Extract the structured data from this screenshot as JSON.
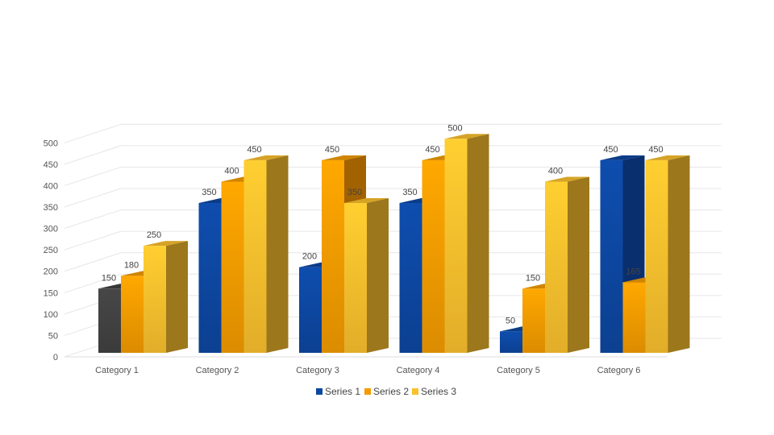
{
  "chart_data": {
    "type": "bar",
    "style": "3d-clustered-column",
    "categories": [
      "Category 1",
      "Category 2",
      "Category 3",
      "Category 4",
      "Category 5",
      "Category 6"
    ],
    "series": [
      {
        "name": "Series 1",
        "values": [
          150,
          350,
          200,
          350,
          50,
          450
        ],
        "color": "#0d47a1"
      },
      {
        "name": "Series 2",
        "values": [
          180,
          400,
          450,
          450,
          150,
          165
        ],
        "color": "#f39c00"
      },
      {
        "name": "Series 3",
        "values": [
          250,
          450,
          350,
          500,
          400,
          450
        ],
        "color": "#fbc02d"
      }
    ],
    "highlighted_points": [
      {
        "series": 0,
        "category": 0,
        "color": "#424242"
      },
      {
        "series": 1,
        "category": 2,
        "color": "#f39c00",
        "side_color": "#a36200"
      },
      {
        "series": 0,
        "category": 5,
        "color": "#0d47a1",
        "side_color": "#0a2f6e"
      }
    ],
    "data_labels": [
      [
        "150",
        "350",
        "200",
        "350",
        "50",
        "450"
      ],
      [
        "180",
        "400",
        "450",
        "450",
        "150",
        "165"
      ],
      [
        "250",
        "450",
        "350",
        "500",
        "400",
        "450"
      ]
    ],
    "yticks": [
      0,
      50,
      100,
      150,
      200,
      250,
      300,
      350,
      400,
      450,
      500
    ],
    "ylim": [
      0,
      500
    ],
    "grid": true,
    "legend_position": "bottom"
  }
}
